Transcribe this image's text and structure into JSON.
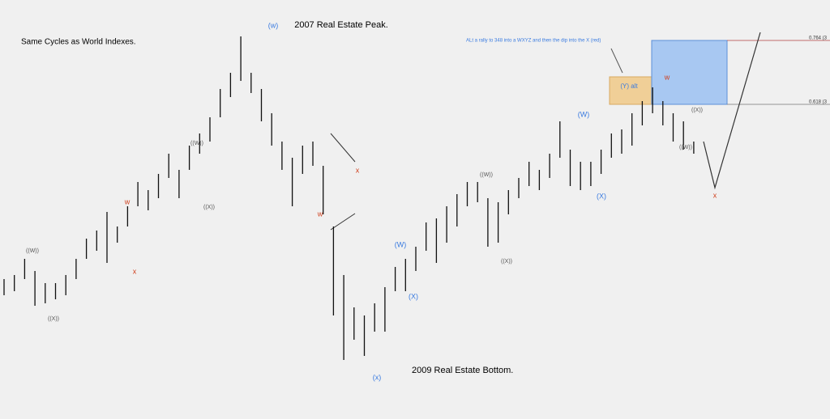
{
  "chart_data": {
    "type": "ohlc",
    "title": "2007 Real Estate Peak.",
    "subtitle": "Same Cycles as World Indexes.",
    "annotations": {
      "bottom": "2009 Real Estate Bottom.",
      "alt_note": "ALt a rally to 348 into a  WXYZ and then the dip into the X (red)",
      "y_alt": "(Y) alt",
      "fib_764": "0.764 (3",
      "fib_618": "0.618 (3"
    },
    "wave_labels": [
      "((W))",
      "((X))",
      "w",
      "x",
      "((W))",
      "((X))",
      "(w)",
      "w",
      "x",
      "(x)",
      "(W)",
      "(X)",
      "((W))",
      "((X))",
      "(W)",
      "(X)",
      "w",
      "((X))",
      "((W))",
      "x"
    ],
    "high": [
      173,
      178,
      198,
      183,
      168,
      168,
      178,
      198,
      223,
      233,
      256,
      238,
      263,
      293,
      283,
      303,
      328,
      308,
      338,
      353,
      373,
      408,
      428,
      473,
      428,
      408,
      378,
      343,
      323,
      338,
      343,
      313,
      238,
      178,
      138,
      128,
      143,
      163,
      188,
      198,
      213,
      243,
      248,
      263,
      278,
      293,
      293,
      273,
      268,
      283,
      298,
      318,
      308,
      328,
      368,
      333,
      318,
      318,
      333,
      353,
      358,
      378,
      393,
      410,
      393,
      378,
      368,
      343
    ],
    "low": [
      153,
      158,
      173,
      140,
      143,
      148,
      153,
      173,
      198,
      208,
      193,
      218,
      238,
      263,
      258,
      273,
      298,
      273,
      308,
      328,
      343,
      373,
      398,
      418,
      403,
      368,
      338,
      308,
      263,
      303,
      313,
      253,
      128,
      73,
      98,
      78,
      108,
      108,
      158,
      158,
      183,
      208,
      193,
      218,
      238,
      263,
      268,
      213,
      218,
      253,
      273,
      288,
      283,
      298,
      323,
      288,
      283,
      288,
      303,
      323,
      328,
      338,
      363,
      378,
      363,
      343,
      333,
      328
    ],
    "color": "#111111",
    "ylim": [
      0,
      518
    ]
  }
}
